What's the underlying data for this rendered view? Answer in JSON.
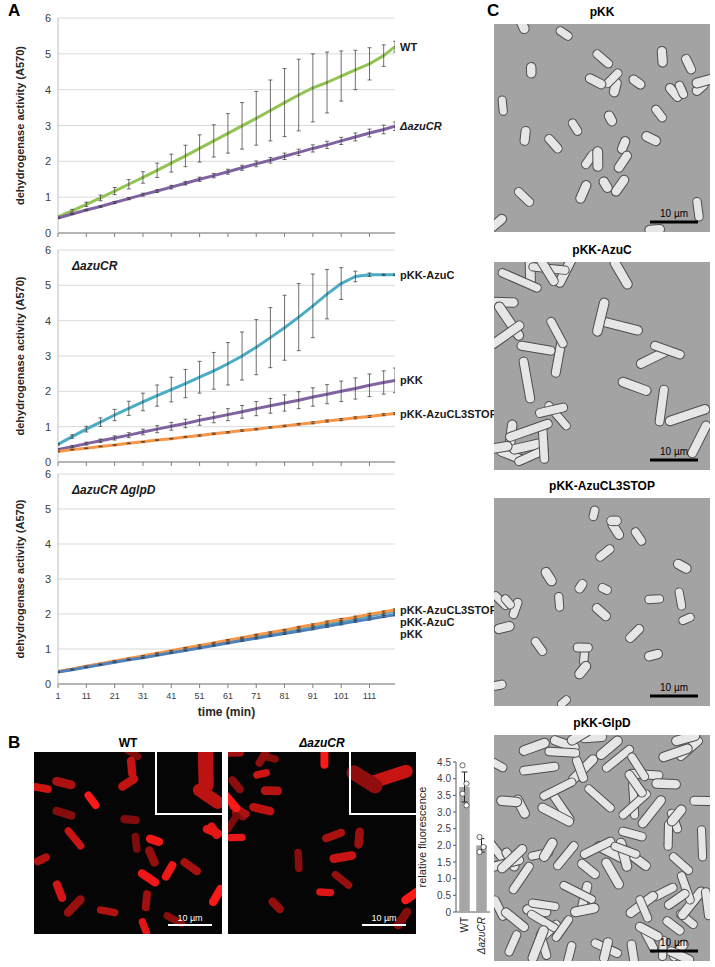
{
  "chart_data": [
    {
      "type": "line",
      "y_label": "dehydrogenase activity (A570)",
      "x": [
        1,
        6,
        11,
        16,
        21,
        26,
        31,
        36,
        41,
        46,
        51,
        56,
        61,
        66,
        71,
        76,
        81,
        86,
        91,
        96,
        101,
        106,
        111,
        116,
        120
      ],
      "xlim": [
        1,
        120
      ],
      "xticks": [
        1,
        11,
        21,
        31,
        41,
        51,
        61,
        71,
        81,
        91,
        101,
        111
      ],
      "ylim": [
        0,
        6
      ],
      "yticks": [
        0,
        1,
        2,
        3,
        4,
        5,
        6
      ],
      "grid": true,
      "tick_labels": "y",
      "series": [
        {
          "name": "WT",
          "color": "#92c353",
          "values": [
            0.45,
            0.62,
            0.8,
            0.98,
            1.17,
            1.36,
            1.55,
            1.75,
            1.95,
            2.15,
            2.36,
            2.57,
            2.78,
            2.99,
            3.2,
            3.42,
            3.64,
            3.85,
            4.05,
            4.2,
            4.38,
            4.55,
            4.72,
            4.95,
            5.2
          ],
          "error": [
            0.02,
            0.04,
            0.06,
            0.08,
            0.1,
            0.13,
            0.16,
            0.2,
            0.25,
            0.3,
            0.38,
            0.45,
            0.55,
            0.65,
            0.75,
            0.85,
            0.95,
            1.0,
            0.95,
            0.85,
            0.7,
            0.55,
            0.45,
            0.3,
            0.15
          ]
        },
        {
          "name": "ΔazuCR",
          "color": "#8064a2",
          "values": [
            0.42,
            0.53,
            0.64,
            0.74,
            0.85,
            0.96,
            1.07,
            1.17,
            1.28,
            1.39,
            1.5,
            1.6,
            1.71,
            1.82,
            1.93,
            2.03,
            2.14,
            2.25,
            2.36,
            2.46,
            2.57,
            2.68,
            2.79,
            2.89,
            2.98
          ],
          "error": [
            0.01,
            0.01,
            0.02,
            0.02,
            0.03,
            0.03,
            0.04,
            0.04,
            0.05,
            0.05,
            0.06,
            0.06,
            0.07,
            0.07,
            0.08,
            0.08,
            0.09,
            0.09,
            0.1,
            0.1,
            0.1,
            0.11,
            0.11,
            0.12,
            0.12
          ]
        }
      ]
    },
    {
      "type": "line",
      "annotation": "ΔazuCR",
      "y_label": "dehydrogenase activity (A570)",
      "x": [
        1,
        6,
        11,
        16,
        21,
        26,
        31,
        36,
        41,
        46,
        51,
        56,
        61,
        66,
        71,
        76,
        81,
        86,
        91,
        96,
        101,
        106,
        111,
        116,
        120
      ],
      "xlim": [
        1,
        120
      ],
      "xticks": [
        1,
        11,
        21,
        31,
        41,
        51,
        61,
        71,
        81,
        91,
        101,
        111
      ],
      "ylim": [
        0,
        6
      ],
      "yticks": [
        0,
        1,
        2,
        3,
        4,
        5,
        6
      ],
      "grid": true,
      "tick_labels": "y",
      "series": [
        {
          "name": "pKK-AzuC",
          "color": "#4bacc6",
          "values": [
            0.5,
            0.72,
            0.93,
            1.13,
            1.33,
            1.52,
            1.7,
            1.88,
            2.05,
            2.22,
            2.4,
            2.58,
            2.78,
            3.0,
            3.25,
            3.52,
            3.8,
            4.1,
            4.42,
            4.75,
            5.05,
            5.25,
            5.3,
            5.3,
            5.3
          ],
          "error": [
            0.02,
            0.05,
            0.08,
            0.12,
            0.16,
            0.2,
            0.25,
            0.3,
            0.35,
            0.4,
            0.45,
            0.52,
            0.6,
            0.68,
            0.78,
            0.85,
            0.92,
            0.95,
            0.9,
            0.7,
            0.45,
            0.15,
            0.05,
            0.02,
            0.02
          ]
        },
        {
          "name": "pKK",
          "color": "#8064a2",
          "values": [
            0.35,
            0.43,
            0.52,
            0.6,
            0.68,
            0.76,
            0.85,
            0.93,
            1.01,
            1.09,
            1.18,
            1.26,
            1.34,
            1.42,
            1.51,
            1.59,
            1.67,
            1.75,
            1.84,
            1.92,
            2.0,
            2.08,
            2.17,
            2.25,
            2.31
          ],
          "error": [
            0.02,
            0.03,
            0.04,
            0.05,
            0.06,
            0.07,
            0.08,
            0.1,
            0.11,
            0.12,
            0.14,
            0.15,
            0.17,
            0.18,
            0.2,
            0.21,
            0.23,
            0.24,
            0.26,
            0.27,
            0.29,
            0.3,
            0.32,
            0.33,
            0.35
          ]
        },
        {
          "name": "pKK-AzuCL3STOP",
          "color": "#f79646",
          "values": [
            0.3,
            0.35,
            0.39,
            0.44,
            0.48,
            0.53,
            0.57,
            0.62,
            0.66,
            0.71,
            0.75,
            0.8,
            0.84,
            0.89,
            0.93,
            0.98,
            1.02,
            1.07,
            1.11,
            1.16,
            1.2,
            1.25,
            1.29,
            1.34,
            1.37
          ],
          "error": [
            0.01,
            0.01,
            0.01,
            0.01,
            0.01,
            0.01,
            0.01,
            0.01,
            0.01,
            0.01,
            0.02,
            0.02,
            0.02,
            0.02,
            0.02,
            0.02,
            0.02,
            0.02,
            0.03,
            0.03,
            0.03,
            0.03,
            0.03,
            0.03,
            0.03
          ]
        }
      ]
    },
    {
      "type": "line",
      "annotation": "ΔazuCR ΔglpD",
      "y_label": "dehydrogenase activity (A570)",
      "x_label": "time (min)",
      "x": [
        1,
        6,
        11,
        16,
        21,
        26,
        31,
        36,
        41,
        46,
        51,
        56,
        61,
        66,
        71,
        76,
        81,
        86,
        91,
        96,
        101,
        106,
        111,
        116,
        120
      ],
      "xlim": [
        1,
        120
      ],
      "xticks": [
        1,
        11,
        21,
        31,
        41,
        51,
        61,
        71,
        81,
        91,
        101,
        111
      ],
      "ylim": [
        0,
        6
      ],
      "yticks": [
        0,
        1,
        2,
        3,
        4,
        5,
        6
      ],
      "grid": true,
      "series": [
        {
          "name": "pKK-AzuC",
          "color": "#4bacc6",
          "values": [
            0.35,
            0.42,
            0.5,
            0.57,
            0.64,
            0.71,
            0.79,
            0.86,
            0.93,
            1.0,
            1.08,
            1.15,
            1.22,
            1.29,
            1.37,
            1.44,
            1.51,
            1.58,
            1.66,
            1.73,
            1.8,
            1.87,
            1.95,
            2.02,
            2.08
          ],
          "error": [
            0.01,
            0.01,
            0.01,
            0.01,
            0.01,
            0.01,
            0.01,
            0.01,
            0.01,
            0.01,
            0.02,
            0.02,
            0.02,
            0.02,
            0.02,
            0.02,
            0.02,
            0.02,
            0.03,
            0.03,
            0.03,
            0.03,
            0.03,
            0.03,
            0.03
          ]
        },
        {
          "name": "pKK-AzuCL3STOP",
          "color": "#f79646",
          "values": [
            0.36,
            0.43,
            0.51,
            0.58,
            0.66,
            0.73,
            0.8,
            0.88,
            0.95,
            1.03,
            1.1,
            1.17,
            1.25,
            1.32,
            1.4,
            1.47,
            1.54,
            1.62,
            1.69,
            1.77,
            1.84,
            1.91,
            1.99,
            2.06,
            2.12
          ],
          "error": [
            0.01,
            0.01,
            0.01,
            0.01,
            0.01,
            0.01,
            0.01,
            0.01,
            0.01,
            0.01,
            0.02,
            0.02,
            0.02,
            0.02,
            0.02,
            0.02,
            0.02,
            0.02,
            0.03,
            0.03,
            0.03,
            0.03,
            0.03,
            0.03,
            0.03
          ]
        },
        {
          "name": "pKK",
          "color": "#4f81bd",
          "values": [
            0.34,
            0.41,
            0.48,
            0.55,
            0.62,
            0.69,
            0.75,
            0.82,
            0.89,
            0.96,
            1.03,
            1.1,
            1.17,
            1.24,
            1.31,
            1.38,
            1.44,
            1.51,
            1.58,
            1.65,
            1.72,
            1.79,
            1.86,
            1.93,
            1.98
          ],
          "error": [
            0.01,
            0.01,
            0.01,
            0.01,
            0.01,
            0.01,
            0.01,
            0.01,
            0.01,
            0.01,
            0.02,
            0.02,
            0.02,
            0.02,
            0.02,
            0.02,
            0.02,
            0.02,
            0.03,
            0.03,
            0.03,
            0.03,
            0.03,
            0.03,
            0.03
          ]
        }
      ]
    },
    {
      "type": "bar",
      "y_label": "relative fluorescence",
      "categories": [
        "WT",
        "ΔazuCR"
      ],
      "values": [
        3.75,
        2.0
      ],
      "error": [
        0.45,
        0.2
      ],
      "points": [
        [
          4.4,
          3.85,
          3.55,
          3.2
        ],
        [
          2.25,
          1.95,
          1.8
        ]
      ],
      "color": "#a6a6a6",
      "ylim": [
        0,
        4.5
      ],
      "yticks": [
        0,
        0.5,
        {
          "value": 1,
          "label": "1.0"
        },
        1.5,
        {
          "value": 2,
          "label": "2.0"
        },
        2.5,
        {
          "value": 3,
          "label": "3.0"
        },
        3.5,
        {
          "value": 4,
          "label": "4.0"
        },
        4.5
      ]
    }
  ],
  "panel_labels": [
    "A",
    "B",
    "C"
  ],
  "panel_b_images": [
    {
      "title": "WT",
      "scale_bar": "10 µm"
    },
    {
      "title": "ΔazuCR",
      "scale_bar": "10 µm"
    }
  ],
  "panel_c_images": [
    {
      "title": "pKK",
      "scale_bar": "10 µm"
    },
    {
      "title": "pKK-AzuC",
      "scale_bar": "10 µm"
    },
    {
      "title": "pKK-AzuCL3STOP",
      "scale_bar": "10 µm"
    },
    {
      "title": "pKK-GlpD",
      "scale_bar": "10 µm"
    }
  ]
}
